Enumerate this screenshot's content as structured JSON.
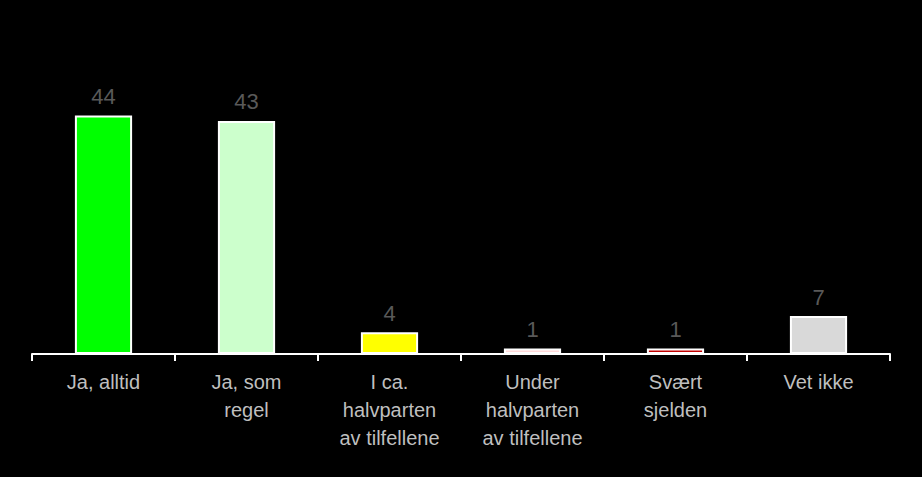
{
  "chart_data": {
    "type": "bar",
    "categories": [
      "Ja, alltid",
      "Ja, som\nregel",
      "I ca.\nhalvparten\nav tilfellene",
      "Under\nhalvparten\nav tilfellene",
      "Svært\nsjelden",
      "Vet ikke"
    ],
    "values": [
      44,
      43,
      4,
      1,
      1,
      7
    ],
    "colors": [
      "#00ff00",
      "#ccffcc",
      "#ffff00",
      "#ffd9d9",
      "#c00000",
      "#d9d9d9"
    ],
    "ylim": [
      0,
      50
    ],
    "grid": false,
    "data_labels": true,
    "tick_labels": "x"
  }
}
